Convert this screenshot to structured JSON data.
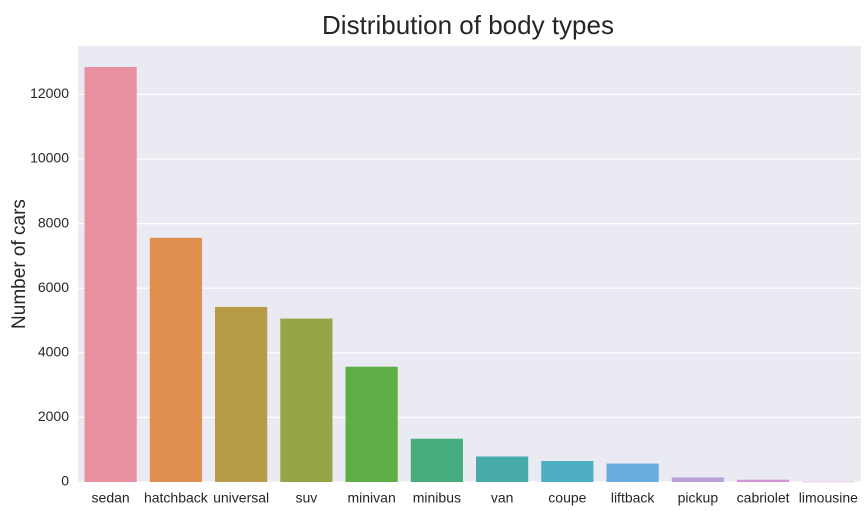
{
  "chart_data": {
    "type": "bar",
    "title": "Distribution of body types",
    "xlabel": "",
    "ylabel": "Number of cars",
    "categories": [
      "sedan",
      "hatchback",
      "universal",
      "suv",
      "minivan",
      "minibus",
      "van",
      "coupe",
      "liftback",
      "pickup",
      "cabriolet",
      "limousine"
    ],
    "values": [
      12850,
      7560,
      5420,
      5060,
      3570,
      1340,
      790,
      650,
      570,
      140,
      70,
      10
    ],
    "bar_colors": [
      "#e8909f",
      "#e08f4f",
      "#b89b46",
      "#97a546",
      "#5daf45",
      "#47ad7f",
      "#48aba9",
      "#4eaec2",
      "#66acdf",
      "#b99fd8",
      "#d395d6",
      "#e993c4"
    ],
    "ylim": [
      0,
      13500
    ],
    "yticks": [
      0,
      2000,
      4000,
      6000,
      8000,
      10000,
      12000
    ],
    "grid": true,
    "background_color": "#eaeaf2",
    "grid_color": "#ffffff"
  }
}
